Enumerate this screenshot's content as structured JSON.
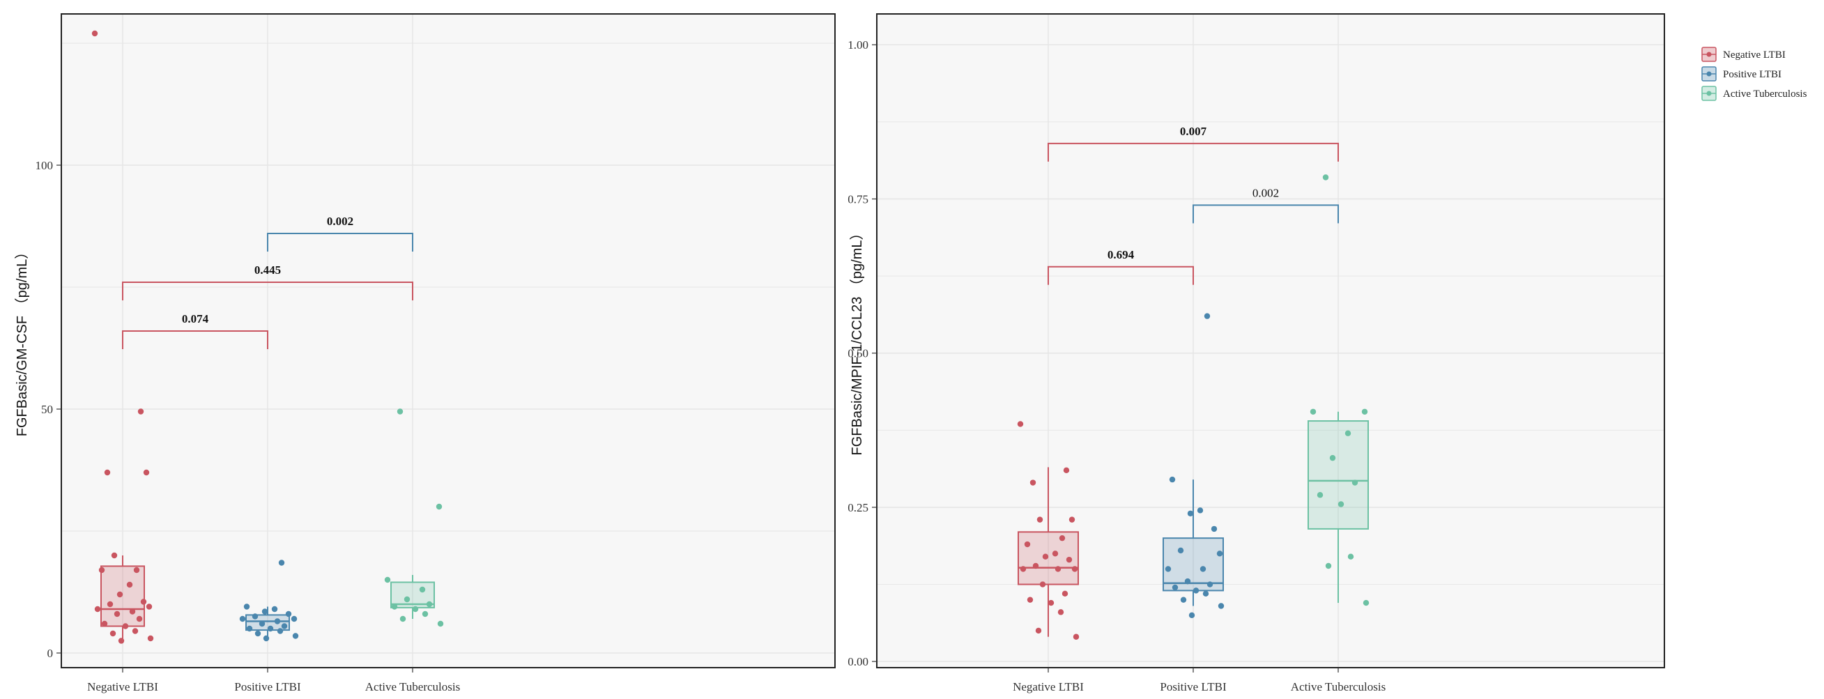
{
  "colors": {
    "Negative LTBI": "#c95560",
    "Positive LTBI": "#4a86ad",
    "Active Tuberculosis": "#6cc1a3",
    "panel_bg": "#f7f7f7",
    "grid": "#e6e6e6"
  },
  "legend": {
    "items": [
      "Negative LTBI",
      "Positive LTBI",
      "Active Tuberculosis"
    ]
  },
  "chart_data": [
    {
      "type": "box",
      "ylabel": "FGFBasic/GM-CSF （pg/mL）",
      "ylim": [
        -3,
        131
      ],
      "yticks": [
        0,
        50,
        100
      ],
      "ytick_labels": [
        "0",
        "50",
        "100"
      ],
      "grid": true,
      "categories": [
        "Negative LTBI",
        "Positive LTBI",
        "Active Tuberculosis"
      ],
      "boxes": [
        {
          "group": "Negative LTBI",
          "q1": 5.5,
          "median": 9,
          "q3": 17.8,
          "whisker_low": 2,
          "whisker_high": 20
        },
        {
          "group": "Positive LTBI",
          "q1": 4.7,
          "median": 6.5,
          "q3": 7.8,
          "whisker_low": 3,
          "whisker_high": 9.5
        },
        {
          "group": "Active Tuberculosis",
          "q1": 9.3,
          "median": 10,
          "q3": 14.5,
          "whisker_low": 7,
          "whisker_high": 16
        }
      ],
      "points": [
        {
          "group": "Negative LTBI",
          "values": [
            127,
            49.5,
            37,
            37,
            20,
            17,
            17,
            14,
            12,
            10.5,
            10,
            9.5,
            9,
            8.5,
            8,
            7,
            6,
            5.5,
            4.5,
            4,
            3,
            2.5
          ]
        },
        {
          "group": "Positive LTBI",
          "values": [
            18.5,
            9.5,
            9,
            8.5,
            8,
            7.5,
            7,
            7,
            6.5,
            6,
            5.5,
            5,
            5,
            4.5,
            4,
            3.5,
            3
          ]
        },
        {
          "group": "Active Tuberculosis",
          "values": [
            49.5,
            30,
            15,
            13,
            11,
            10,
            9.5,
            9,
            8,
            7,
            6
          ]
        }
      ],
      "comparisons": [
        {
          "from": "Negative LTBI",
          "to": "Positive LTBI",
          "y": 66,
          "label": "0.074",
          "color": "#c95560",
          "bold": true
        },
        {
          "from": "Negative LTBI",
          "to": "Active Tuberculosis",
          "y": 76,
          "label": "0.445",
          "color": "#c95560",
          "bold": true
        },
        {
          "from": "Positive LTBI",
          "to": "Active Tuberculosis",
          "y": 86,
          "label": "0.002",
          "color": "#4a86ad",
          "bold": true
        }
      ]
    },
    {
      "type": "box",
      "ylabel": "FGFBasic/MPIF-1/CCL23 （pg/mL）",
      "ylim": [
        -0.01,
        1.05
      ],
      "yticks": [
        0,
        0.25,
        0.5,
        0.75,
        1.0
      ],
      "ytick_labels": [
        "0.00",
        "0.25",
        "0.50",
        "0.75",
        "1.00"
      ],
      "grid": true,
      "categories": [
        "Negative LTBI",
        "Positive LTBI",
        "Active Tuberculosis"
      ],
      "boxes": [
        {
          "group": "Negative LTBI",
          "q1": 0.125,
          "median": 0.152,
          "q3": 0.21,
          "whisker_low": 0.04,
          "whisker_high": 0.315
        },
        {
          "group": "Positive LTBI",
          "q1": 0.115,
          "median": 0.127,
          "q3": 0.2,
          "whisker_low": 0.09,
          "whisker_high": 0.295
        },
        {
          "group": "Active Tuberculosis",
          "q1": 0.215,
          "median": 0.293,
          "q3": 0.39,
          "whisker_low": 0.095,
          "whisker_high": 0.405
        }
      ],
      "points": [
        {
          "group": "Negative LTBI",
          "values": [
            0.385,
            0.31,
            0.29,
            0.23,
            0.23,
            0.2,
            0.19,
            0.175,
            0.17,
            0.165,
            0.155,
            0.15,
            0.15,
            0.15,
            0.125,
            0.11,
            0.1,
            0.095,
            0.08,
            0.05,
            0.04
          ]
        },
        {
          "group": "Positive LTBI",
          "values": [
            0.56,
            0.295,
            0.245,
            0.24,
            0.215,
            0.18,
            0.175,
            0.15,
            0.15,
            0.13,
            0.125,
            0.12,
            0.115,
            0.11,
            0.1,
            0.09,
            0.075
          ]
        },
        {
          "group": "Active Tuberculosis",
          "values": [
            0.785,
            0.405,
            0.405,
            0.37,
            0.33,
            0.29,
            0.27,
            0.255,
            0.17,
            0.155,
            0.095
          ]
        }
      ],
      "comparisons": [
        {
          "from": "Negative LTBI",
          "to": "Positive LTBI",
          "y": 0.64,
          "label": "0.694",
          "color": "#c95560",
          "bold": true
        },
        {
          "from": "Negative LTBI",
          "to": "Active Tuberculosis",
          "y": 0.84,
          "label": "0.007",
          "color": "#c95560",
          "bold": true
        },
        {
          "from": "Positive LTBI",
          "to": "Active Tuberculosis",
          "y": 0.74,
          "label": "0.002",
          "color": "#4a86ad",
          "bold": false
        }
      ]
    }
  ]
}
